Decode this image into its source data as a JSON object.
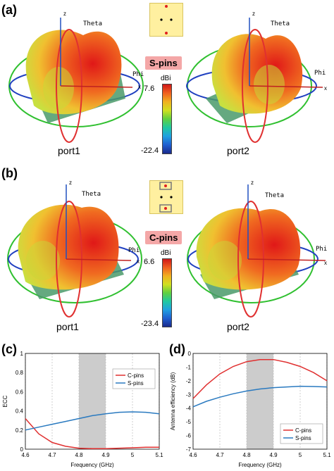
{
  "panels": {
    "a": {
      "letter": "(a)",
      "badge": "S-pins",
      "unit": "dBi",
      "max": "7.6",
      "min": "-22.4",
      "port_left": "port1",
      "port_right": "port2"
    },
    "b": {
      "letter": "(b)",
      "badge": "C-pins",
      "unit": "dBi",
      "max": "6.6",
      "min": "-23.4",
      "port_left": "port1",
      "port_right": "port2"
    },
    "c": {
      "letter": "(c)"
    },
    "d": {
      "letter": "(d)"
    }
  },
  "axes3d": {
    "z": "z",
    "theta": "Theta",
    "phi": "Phi",
    "x": "x"
  },
  "colorbar_colors": [
    "#1a2a8c",
    "#1f5fd0",
    "#20a0e0",
    "#20c8a0",
    "#60d040",
    "#d0e020",
    "#f0b020",
    "#f06020",
    "#d01818"
  ],
  "chart_data": [
    {
      "type": "line",
      "xlabel": "Frequency (GHz)",
      "ylabel": "ECC",
      "xlim": [
        4.6,
        5.1
      ],
      "ylim": [
        0,
        1
      ],
      "xticks": [
        "4.6",
        "4.7",
        "4.8",
        "4.9",
        "5",
        "5.1"
      ],
      "yticks": [
        "0",
        "0.2",
        "0.4",
        "0.6",
        "0.8",
        "1"
      ],
      "shaded_band": [
        4.8,
        4.9
      ],
      "legend_position": "top-right",
      "series": [
        {
          "name": "C-pins",
          "color": "#e03030",
          "x": [
            4.6,
            4.65,
            4.7,
            4.75,
            4.8,
            4.85,
            4.9,
            4.95,
            5.0,
            5.05,
            5.1
          ],
          "y": [
            0.32,
            0.16,
            0.07,
            0.03,
            0.01,
            0.005,
            0.005,
            0.01,
            0.015,
            0.02,
            0.02
          ]
        },
        {
          "name": "S-pins",
          "color": "#2a7ac0",
          "x": [
            4.6,
            4.65,
            4.7,
            4.75,
            4.8,
            4.85,
            4.9,
            4.95,
            5.0,
            5.05,
            5.1
          ],
          "y": [
            0.2,
            0.23,
            0.26,
            0.29,
            0.32,
            0.35,
            0.37,
            0.385,
            0.39,
            0.385,
            0.37
          ]
        }
      ]
    },
    {
      "type": "line",
      "xlabel": "Frequency (GHz)",
      "ylabel": "Antenna efficiency (dB)",
      "xlim": [
        4.6,
        5.1
      ],
      "ylim": [
        -7,
        0
      ],
      "xticks": [
        "4.6",
        "4.7",
        "4.8",
        "4.9",
        "5",
        "5.1"
      ],
      "yticks": [
        "-7",
        "-6",
        "-5",
        "-4",
        "-3",
        "-2",
        "-1",
        "0"
      ],
      "shaded_band": [
        4.8,
        4.9
      ],
      "legend_position": "bottom-right",
      "series": [
        {
          "name": "C-pins",
          "color": "#e03030",
          "x": [
            4.6,
            4.65,
            4.7,
            4.75,
            4.8,
            4.85,
            4.9,
            4.95,
            5.0,
            5.05,
            5.1
          ],
          "y": [
            -3.3,
            -2.3,
            -1.5,
            -0.95,
            -0.6,
            -0.45,
            -0.45,
            -0.65,
            -0.95,
            -1.4,
            -2.0
          ]
        },
        {
          "name": "S-pins",
          "color": "#2a7ac0",
          "x": [
            4.6,
            4.65,
            4.7,
            4.75,
            4.8,
            4.85,
            4.9,
            4.95,
            5.0,
            5.05,
            5.1
          ],
          "y": [
            -3.9,
            -3.5,
            -3.2,
            -2.95,
            -2.75,
            -2.6,
            -2.5,
            -2.45,
            -2.4,
            -2.42,
            -2.45
          ]
        }
      ]
    }
  ]
}
